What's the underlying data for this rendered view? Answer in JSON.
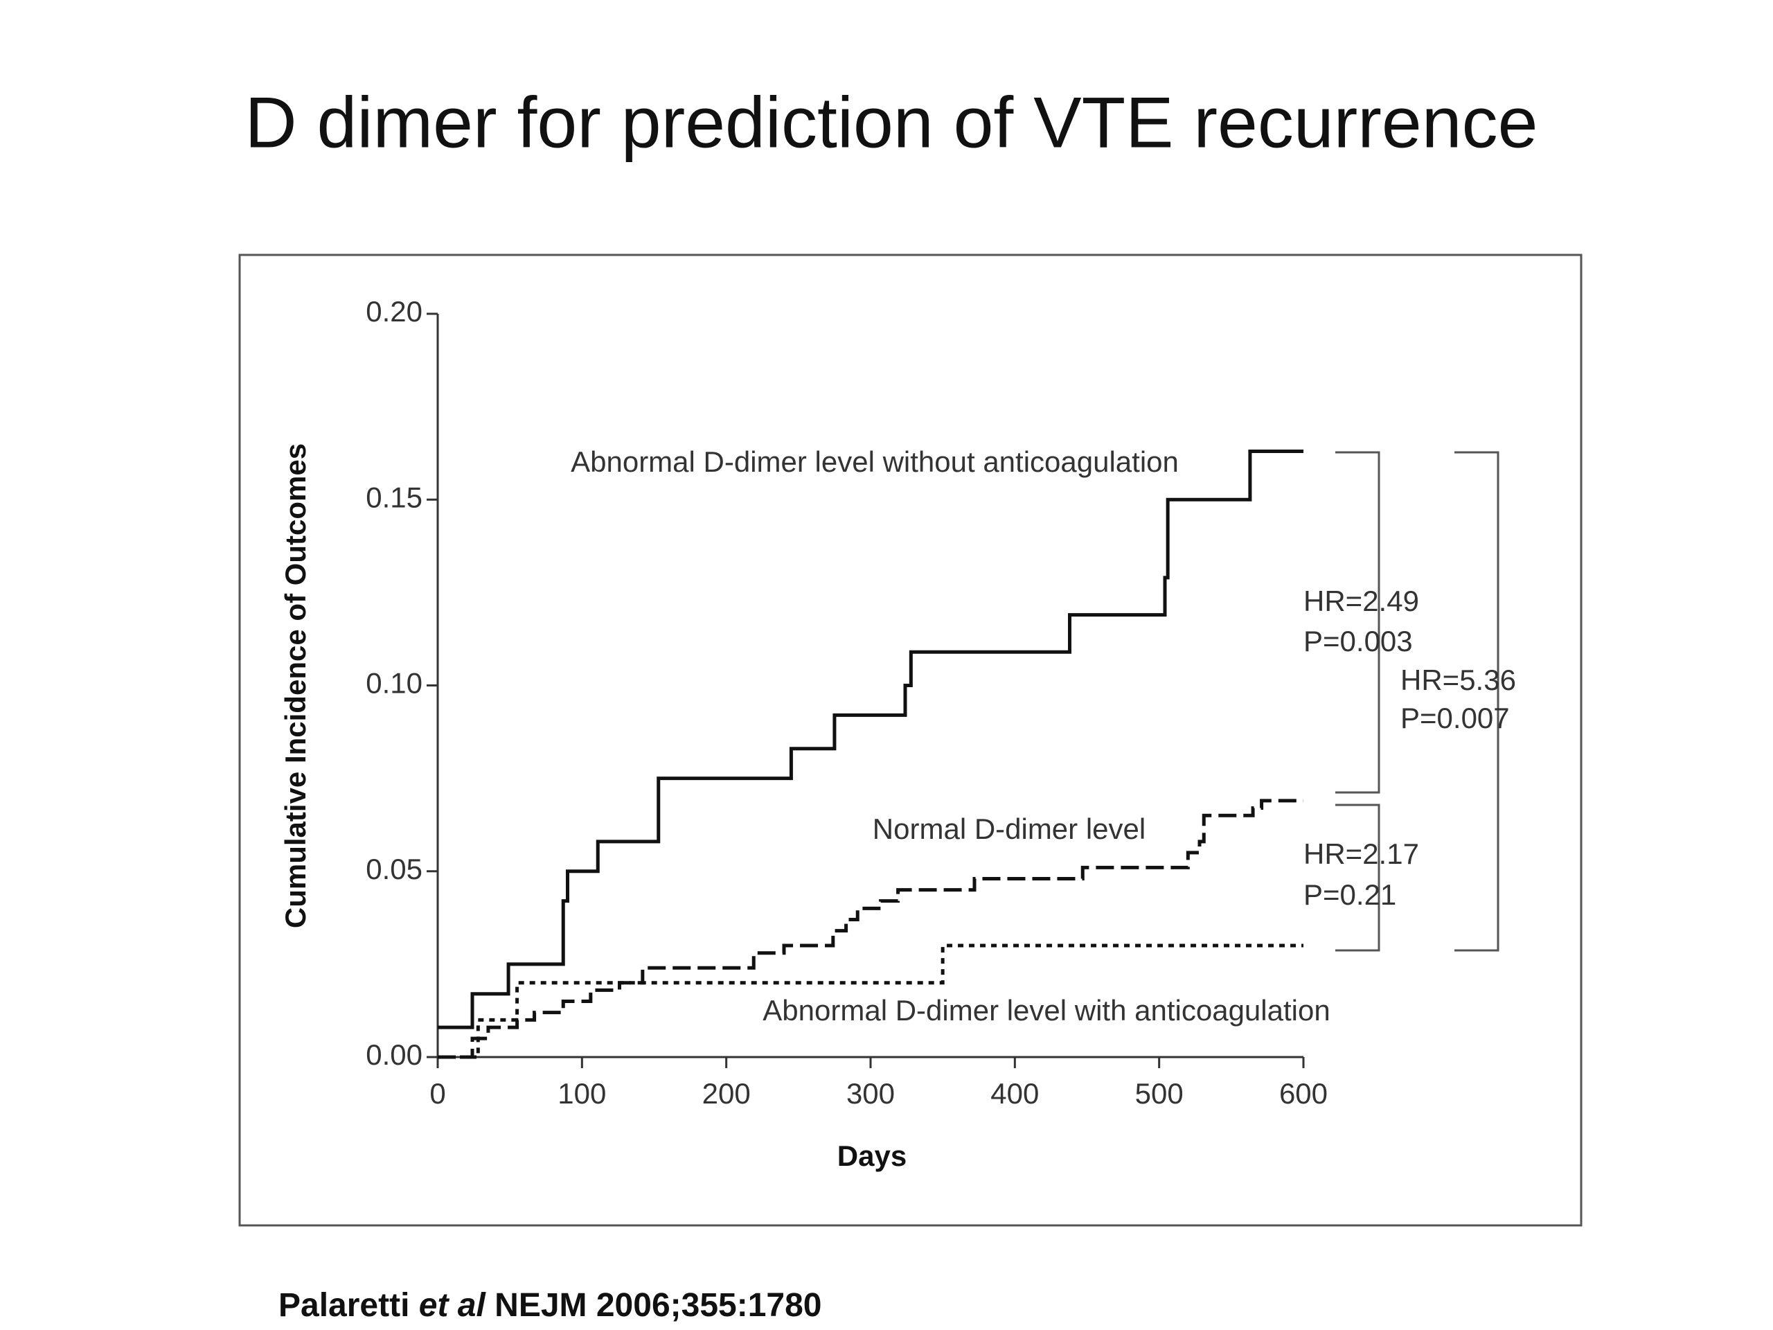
{
  "chart_data": {
    "type": "step",
    "title": "D dimer for prediction of VTE recurrence",
    "xlabel": "Days",
    "ylabel": "Cumulative Incidence of Outcomes",
    "xlim": [
      0,
      600
    ],
    "ylim": [
      0,
      0.2
    ],
    "xticks": [
      0,
      100,
      200,
      300,
      400,
      500,
      600
    ],
    "yticks": [
      {
        "value": 0,
        "label": "0.00"
      },
      {
        "value": 0.05,
        "label": "0.05"
      },
      {
        "value": 0.1,
        "label": "0.10"
      },
      {
        "value": 0.15,
        "label": "0.15"
      },
      {
        "value": 0.2,
        "label": "0.20"
      }
    ],
    "series": [
      {
        "name": "Abnormal D-dimer level without anticoagulation",
        "color": "#111111",
        "dash": "solid",
        "x": [
          0,
          24,
          49,
          87,
          90,
          111,
          153,
          245,
          275,
          324,
          328,
          438,
          504,
          506,
          563,
          600
        ],
        "values": [
          0.008,
          0.017,
          0.025,
          0.042,
          0.05,
          0.058,
          0.075,
          0.083,
          0.092,
          0.1,
          0.109,
          0.119,
          0.129,
          0.15,
          0.163,
          0.163
        ]
      },
      {
        "name": "Normal D-dimer level",
        "color": "#111111",
        "dash": "dashed",
        "x": [
          0,
          24,
          35,
          55,
          67,
          87,
          106,
          126,
          142,
          219,
          240,
          274,
          283,
          291,
          307,
          319,
          372,
          447,
          520,
          528,
          531,
          565,
          571,
          600
        ],
        "values": [
          0,
          0.005,
          0.008,
          0.01,
          0.012,
          0.015,
          0.018,
          0.02,
          0.024,
          0.028,
          0.03,
          0.034,
          0.037,
          0.04,
          0.042,
          0.045,
          0.048,
          0.051,
          0.055,
          0.058,
          0.065,
          0.067,
          0.069,
          0.069
        ]
      },
      {
        "name": "Abnormal D-dimer level with anticoagulation",
        "color": "#111111",
        "dash": "dotted",
        "x": [
          0,
          28,
          55,
          350,
          600
        ],
        "values": [
          0,
          0.01,
          0.02,
          0.03,
          0.03
        ]
      }
    ],
    "annotations": [
      "HR=2.49",
      "P=0.003",
      "HR=5.36",
      "P=0.007",
      "HR=2.17",
      "P=0.21"
    ],
    "citation": [
      "Palaretti",
      "et al",
      "NEJM 2006;355:1780"
    ]
  }
}
